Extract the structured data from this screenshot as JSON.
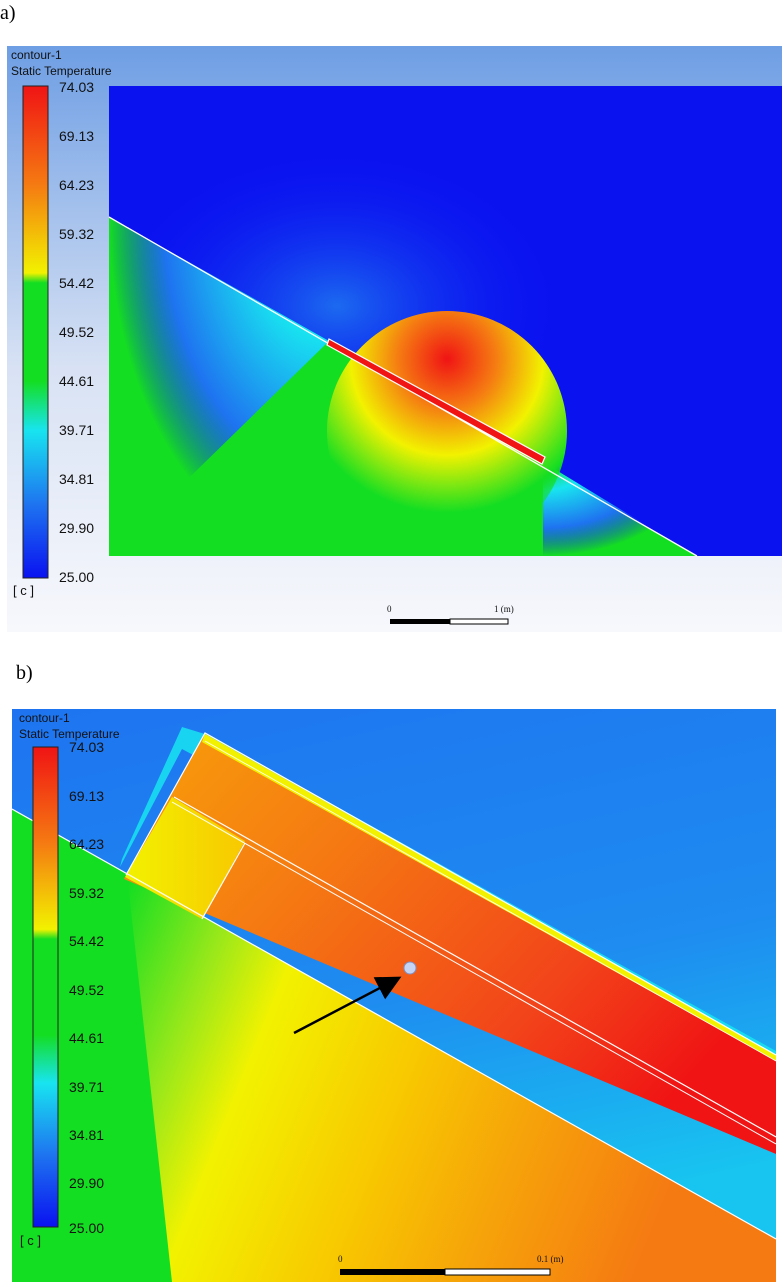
{
  "panels": [
    {
      "label": "a)",
      "contour_name": "contour-1",
      "variable": "Static Temperature",
      "units": "[ c ]",
      "colorbar_ticks": [
        "74.03",
        "69.13",
        "64.23",
        "59.32",
        "54.42",
        "49.52",
        "44.61",
        "39.71",
        "34.81",
        "29.90",
        "25.00"
      ],
      "scale": {
        "start": "0",
        "end": "1 (m)"
      }
    },
    {
      "label": "b)",
      "contour_name": "contour-1",
      "variable": "Static Temperature",
      "units": "[ c ]",
      "colorbar_ticks": [
        "74.03",
        "69.13",
        "64.23",
        "59.32",
        "54.42",
        "49.52",
        "44.61",
        "39.71",
        "34.81",
        "29.90",
        "25.00"
      ],
      "scale": {
        "start": "0",
        "end": "0.1 (m)"
      }
    }
  ],
  "colors": {
    "min": "#0a12f0",
    "low": "#1e74f0",
    "cyan": "#18e4f0",
    "green": "#14de22",
    "yellow": "#f2f200",
    "orange": "#f57a12",
    "max": "#f01414"
  }
}
